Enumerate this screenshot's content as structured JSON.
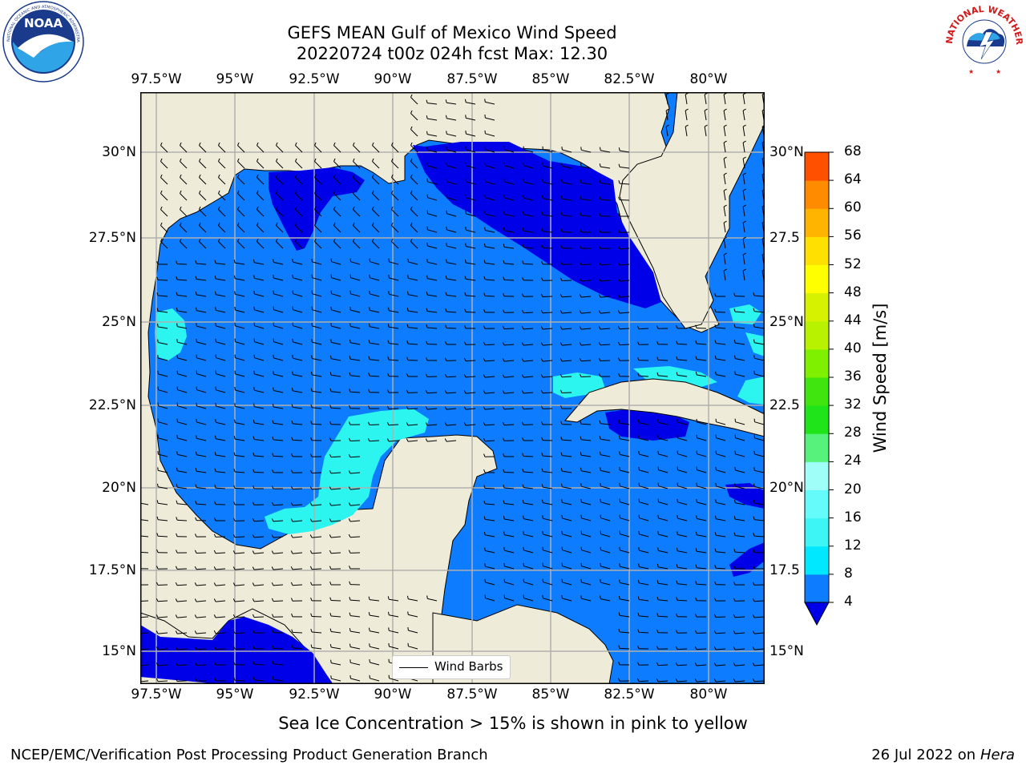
{
  "header": {
    "title_line1": "GEFS MEAN Gulf of Mexico Wind Speed",
    "title_line2": "20220724 t00z 024h fcst   Max: 12.30"
  },
  "logos": {
    "left": {
      "name": "NOAA",
      "ring_text": "NATIONAL OCEANIC AND ATMOSPHERIC ADMINISTRATION · U.S. DEPARTMENT OF COMMERCE"
    },
    "right": {
      "name": "NATIONAL WEATHER SERVICE"
    }
  },
  "map": {
    "x_ticks": [
      "97.5°W",
      "95°W",
      "92.5°W",
      "90°W",
      "87.5°W",
      "85°W",
      "82.5°W",
      "80°W"
    ],
    "y_ticks": [
      "30°N",
      "27.5°N",
      "25°N",
      "22.5°N",
      "20°N",
      "17.5°N",
      "15°N"
    ],
    "y_ticks_right": [
      "30°N",
      "27.5",
      "25°N",
      "22.5",
      "20°N",
      "17.5",
      "15°N"
    ],
    "legend_label": "Wind Barbs",
    "colors": {
      "land": "#eeecd9",
      "ocean_4_8": "#0d7cff",
      "ocean_lt4": "#0000e8",
      "ocean_8_12": "#2cf4ee"
    }
  },
  "colorbar": {
    "label": "Wind Speed [m/s]",
    "ticks": [
      "4",
      "8",
      "12",
      "16",
      "20",
      "24",
      "28",
      "32",
      "36",
      "40",
      "44",
      "48",
      "52",
      "56",
      "60",
      "64",
      "68"
    ],
    "colors": [
      "#0d7cff",
      "#00e8ff",
      "#3ef5f5",
      "#66fbfb",
      "#9ffff8",
      "#56f27c",
      "#20e41a",
      "#40e510",
      "#7ff000",
      "#b9f200",
      "#d7f200",
      "#ffff00",
      "#ffe000",
      "#ffb400",
      "#ff8c00",
      "#ff5000",
      "#ff2a00",
      "#ff0000"
    ],
    "extend_color": "#0000e8"
  },
  "caption": "Sea Ice Concentration > 15% is shown in pink to yellow",
  "footer": {
    "left": "NCEP/EMC/Verification Post Processing Product Generation Branch",
    "right_prefix": "26 Jul 2022 on ",
    "right_host": "Hera"
  }
}
